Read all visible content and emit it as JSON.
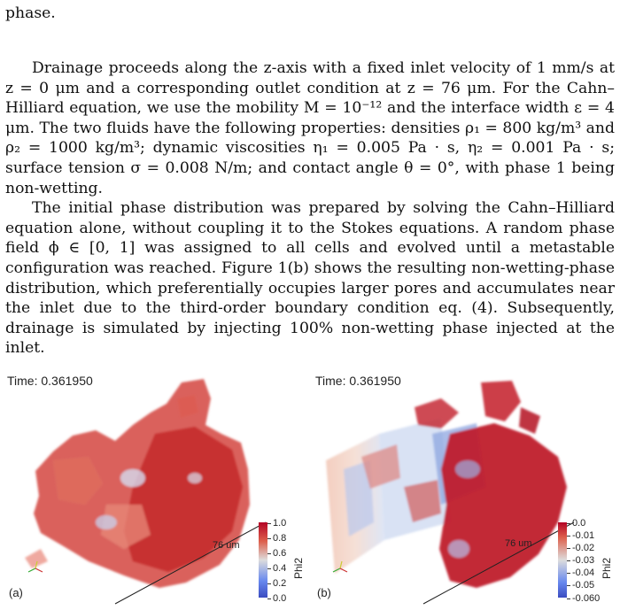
{
  "paragraphs": {
    "p0": "phase.",
    "p1": "Drainage proceeds along the z-axis with a fixed inlet velocity of 1 mm/s at z = 0 μm and a corresponding outlet condition at z = 76 μm. For the Cahn–Hilliard equation, we use the mobility M = 10⁻¹² and the interface width ε = 4 μm. The two fluids have the following properties: densities ρ₁ = 800 kg/m³ and ρ₂ = 1000 kg/m³; dynamic viscosities η₁ = 0.005 Pa · s, η₂ = 0.001 Pa · s; surface tension σ = 0.008 N/m; and contact angle θ = 0°, with phase 1 being non-wetting.",
    "p2": "The initial phase distribution was prepared by solving the Cahn–Hilliard equation alone, without coupling it to the Stokes equations. A random phase field ϕ ∈ [0, 1] was assigned to all cells and evolved until a metastable configuration was reached. Figure 1(b) shows the resulting non-wetting-phase distribution, which preferentially occupies larger pores and accumulates near the inlet due to the third-order boundary condition eq. (4). Subsequently, drainage is simulated by injecting 100% non-wetting phase injected at the inlet."
  },
  "figure": {
    "panel_a": {
      "time": "Time: 0.361950",
      "label": "(a)",
      "scale": "76 um",
      "colorbar_title": "Phi2",
      "ticks": [
        "1.0",
        "0.8",
        "0.6",
        "0.4",
        "0.2",
        "0.0"
      ]
    },
    "panel_b": {
      "time": "Time: 0.361950",
      "label": "(b)",
      "scale": "76 um",
      "colorbar_title": "Phi2",
      "ticks": [
        "0.0",
        "-0.01",
        "-0.02",
        "-0.03",
        "-0.04",
        "-0.05",
        "-0.060"
      ]
    }
  },
  "colors": {
    "red": "#c0282d",
    "light_red": "#e07a6a",
    "blue": "#6d8fd6",
    "light_blue": "#c3d3ef"
  }
}
